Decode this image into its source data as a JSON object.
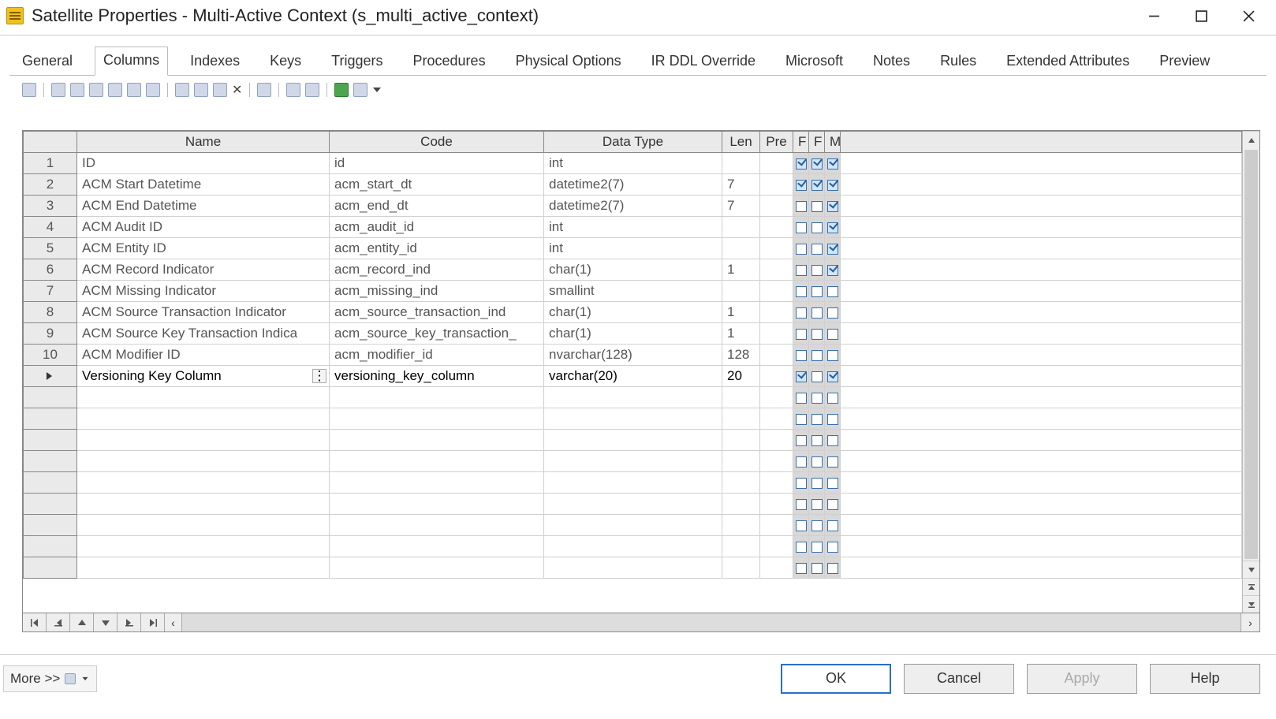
{
  "window": {
    "title": "Satellite Properties - Multi-Active Context (s_multi_active_context)"
  },
  "tabs": [
    {
      "label": "General"
    },
    {
      "label": "Columns",
      "active": true
    },
    {
      "label": "Indexes"
    },
    {
      "label": "Keys"
    },
    {
      "label": "Triggers"
    },
    {
      "label": "Procedures"
    },
    {
      "label": "Physical Options"
    },
    {
      "label": "IR DDL Override"
    },
    {
      "label": "Microsoft"
    },
    {
      "label": "Notes"
    },
    {
      "label": "Rules"
    },
    {
      "label": "Extended Attributes"
    },
    {
      "label": "Preview"
    }
  ],
  "grid": {
    "headers": {
      "name": "Name",
      "code": "Code",
      "datatype": "Data Type",
      "len": "Len",
      "pre": "Pre",
      "f1": "F",
      "f2": "F",
      "m": "M"
    },
    "col_widths": {
      "rownum": 68,
      "name": 320,
      "code": 272,
      "datatype": 226,
      "len": 48,
      "pre": 42,
      "f1": 20,
      "f2": 20,
      "m": 20
    },
    "rows": [
      {
        "num": "1",
        "name": "ID",
        "code": "id",
        "datatype": "int",
        "len": "",
        "pre": "",
        "f1": true,
        "f2": true,
        "m": true
      },
      {
        "num": "2",
        "name": "ACM Start Datetime",
        "code": "acm_start_dt",
        "datatype": "datetime2(7)",
        "len": "7",
        "pre": "",
        "f1": true,
        "f2": true,
        "m": true
      },
      {
        "num": "3",
        "name": "ACM End Datetime",
        "code": "acm_end_dt",
        "datatype": "datetime2(7)",
        "len": "7",
        "pre": "",
        "f1": false,
        "f2": false,
        "m": true
      },
      {
        "num": "4",
        "name": "ACM Audit ID",
        "code": "acm_audit_id",
        "datatype": "int",
        "len": "",
        "pre": "",
        "f1": false,
        "f2": false,
        "m": true
      },
      {
        "num": "5",
        "name": "ACM Entity ID",
        "code": "acm_entity_id",
        "datatype": "int",
        "len": "",
        "pre": "",
        "f1": false,
        "f2": false,
        "m": true
      },
      {
        "num": "6",
        "name": "ACM Record Indicator",
        "code": "acm_record_ind",
        "datatype": "char(1)",
        "len": "1",
        "pre": "",
        "f1": false,
        "f2": false,
        "m": true
      },
      {
        "num": "7",
        "name": "ACM Missing Indicator",
        "code": "acm_missing_ind",
        "datatype": "smallint",
        "len": "",
        "pre": "",
        "f1": false,
        "f2": false,
        "m": false
      },
      {
        "num": "8",
        "name": "ACM Source Transaction Indicator",
        "code": "acm_source_transaction_ind",
        "datatype": "char(1)",
        "len": "1",
        "pre": "",
        "f1": false,
        "f2": false,
        "m": false
      },
      {
        "num": "9",
        "name": "ACM Source Key Transaction Indica",
        "code": "acm_source_key_transaction_",
        "datatype": "char(1)",
        "len": "1",
        "pre": "",
        "f1": false,
        "f2": false,
        "m": false
      },
      {
        "num": "10",
        "name": "ACM Modifier ID",
        "code": "acm_modifier_id",
        "datatype": "nvarchar(128)",
        "len": "128",
        "pre": "",
        "f1": false,
        "f2": false,
        "m": false
      }
    ],
    "active_row": {
      "name": "Versioning Key Column",
      "code": "versioning_key_column",
      "datatype": "varchar(20)",
      "len": "20",
      "pre": "",
      "f1": true,
      "f2": false,
      "m": true
    },
    "empty_rows": 9
  },
  "footer": {
    "more": "More >>",
    "ok": "OK",
    "cancel": "Cancel",
    "apply": "Apply",
    "help": "Help"
  }
}
